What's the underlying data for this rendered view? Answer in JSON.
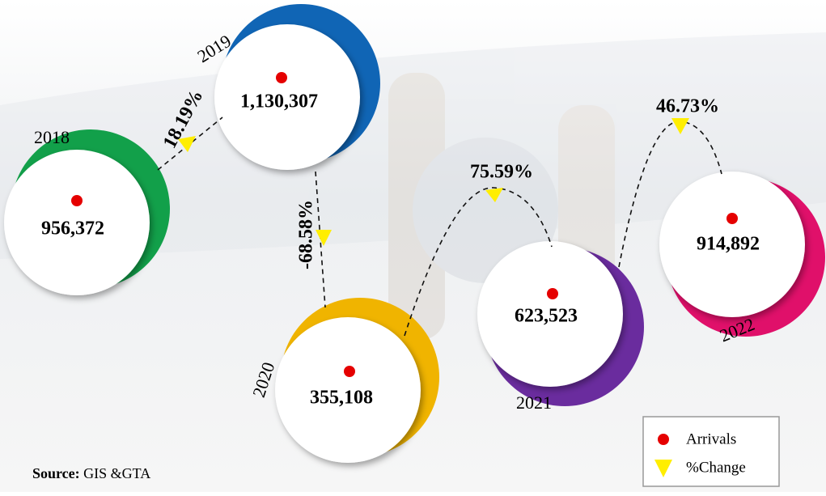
{
  "years": [
    {
      "year": "2018",
      "arrivals": "956,372"
    },
    {
      "year": "2019",
      "arrivals": "1,130,307"
    },
    {
      "year": "2020",
      "arrivals": "355,108"
    },
    {
      "year": "2021",
      "arrivals": "623,523"
    },
    {
      "year": "2022",
      "arrivals": "914,892"
    }
  ],
  "changes": [
    "18.19%",
    "-68.58%",
    "75.59%",
    "46.73%"
  ],
  "legend": [
    "Arrivals",
    "%Change"
  ],
  "source": {
    "label": "Source:",
    "text": "GIS &GTA"
  }
}
